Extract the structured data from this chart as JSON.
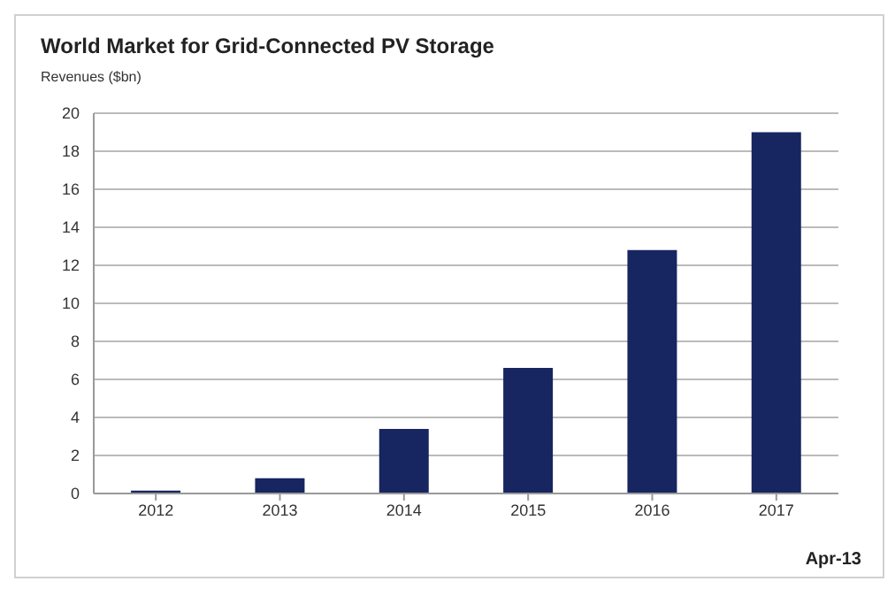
{
  "chart_data": {
    "type": "bar",
    "title": "World Market for Grid-Connected PV Storage",
    "ylabel": "Revenues ($bn)",
    "categories": [
      "2012",
      "2013",
      "2014",
      "2015",
      "2016",
      "2017"
    ],
    "values": [
      0.15,
      0.8,
      3.4,
      6.6,
      12.8,
      19.0
    ],
    "color": "#172560",
    "ylim": [
      0,
      20
    ],
    "yticks": [
      0,
      2,
      4,
      6,
      8,
      10,
      12,
      14,
      16,
      18,
      20
    ],
    "grid": "y",
    "legend": false,
    "annotations": [
      "Apr-13"
    ]
  }
}
